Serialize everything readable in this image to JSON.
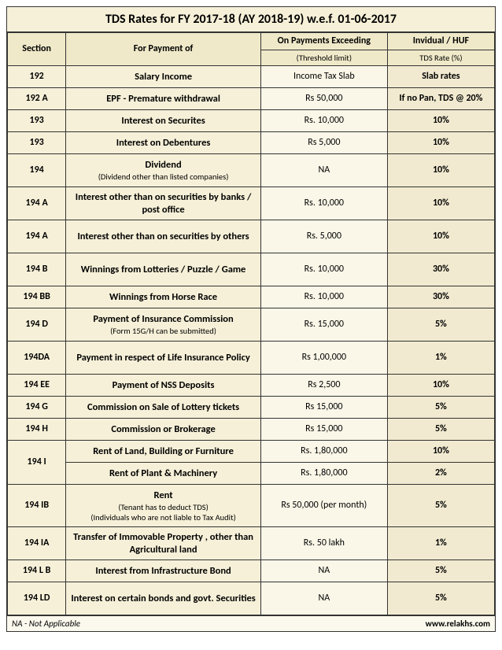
{
  "title": "TDS Rates for FY 2017-18 (AY 2018-19) w.e.f. 01-06-2017",
  "headers": {
    "section": "Section",
    "payment": "For Payment of",
    "threshold_main": "On Payments Exceeding",
    "threshold_sub": "(Threshold limit)",
    "rate_main": "Invidual / HUF",
    "rate_sub": "TDS Rate (%)"
  },
  "rows": [
    {
      "section": "192",
      "payment": "Salary Income",
      "threshold": "Income Tax Slab",
      "rate": "Slab rates"
    },
    {
      "section": "192 A",
      "payment": "EPF - Premature withdrawal",
      "threshold": "Rs 50,000",
      "rate": "If no Pan, TDS @ 20%"
    },
    {
      "section": "193",
      "payment": "Interest on Securites",
      "threshold": "Rs. 10,000",
      "rate": "10%"
    },
    {
      "section": "193",
      "payment": "Interest on Debentures",
      "threshold": "Rs 5,000",
      "rate": "10%"
    },
    {
      "section": "194",
      "payment": "Dividend",
      "payment_sub": "(Dividend other than listed companies)",
      "threshold": "NA",
      "rate": "10%"
    },
    {
      "section": "194 A",
      "payment": "Interest other than on securities by banks / post office",
      "threshold": "Rs. 10,000",
      "rate": "10%"
    },
    {
      "section": "194 A",
      "payment": "Interest other than on securities by others",
      "threshold": "Rs. 5,000",
      "rate": "10%"
    },
    {
      "section": "194 B",
      "payment": "Winnings from Lotteries / Puzzle / Game",
      "threshold": "Rs. 10,000",
      "rate": "30%"
    },
    {
      "section": "194 BB",
      "payment": "Winnings from Horse Race",
      "threshold": "Rs. 10,000",
      "rate": "30%"
    },
    {
      "section": "194 D",
      "payment": "Payment of Insurance Commission",
      "payment_sub": "(Form 15G/H can be submitted)",
      "threshold": "Rs. 15,000",
      "rate": "5%"
    },
    {
      "section": "194DA",
      "payment": "Payment in respect of Life Insurance Policy",
      "threshold": "Rs 1,00,000",
      "rate": "1%"
    },
    {
      "section": "194 EE",
      "payment": "Payment of NSS Deposits",
      "threshold": "Rs 2,500",
      "rate": "10%"
    },
    {
      "section": "194 G",
      "payment": "Commission on Sale of Lottery tickets",
      "threshold": "Rs 15,000",
      "rate": "5%"
    },
    {
      "section": "194 H",
      "payment": "Commission or Brokerage",
      "threshold": "Rs 15,000",
      "rate": "5%"
    },
    {
      "section": "194 I",
      "merge_section": true,
      "sub_rows": [
        {
          "payment": "Rent of Land, Building or Furniture",
          "threshold": "Rs. 1,80,000",
          "rate": "10%"
        },
        {
          "payment": "Rent of Plant & Machinery",
          "threshold": "Rs. 1,80,000",
          "rate": "2%"
        }
      ]
    },
    {
      "section": "194 IB",
      "payment": "Rent",
      "payment_sub": "(Tenant has to deduct TDS)",
      "payment_sub2": "(Individuals who are not liable to Tax Audit)",
      "threshold": "Rs 50,000 (per month)",
      "rate": "5%"
    },
    {
      "section": "194 IA",
      "payment": "Transfer of Immovable Property , other than Agricultural land",
      "threshold": "Rs. 50 lakh",
      "rate": "1%"
    },
    {
      "section": "194 L B",
      "payment": "Interest from Infrastructure Bond",
      "threshold": "NA",
      "rate": "5%"
    },
    {
      "section": "194 LD",
      "payment": "Interest on certain bonds and govt. Securities",
      "threshold": "NA",
      "rate": "5%"
    }
  ],
  "footer": {
    "left": "NA - Not Applicable",
    "right": "www.relakhs.com"
  },
  "colors": {
    "frame_bg": "#f6f0d8",
    "header_bg": "#efe9c9",
    "c3_bg": "#faf7e8",
    "c4_bg": "#f1ead0",
    "border": "#333333"
  }
}
